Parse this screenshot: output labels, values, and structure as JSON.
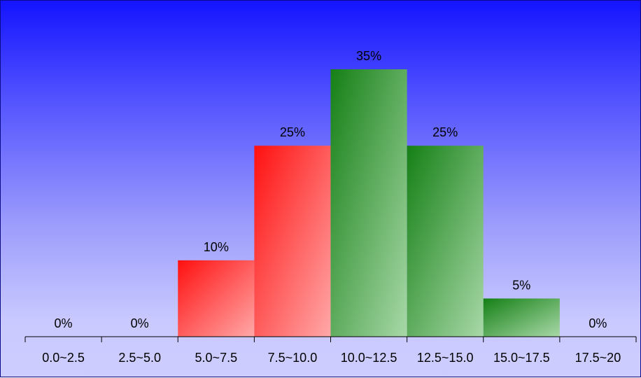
{
  "chart_data": {
    "type": "bar",
    "categories": [
      "0.0~2.5",
      "2.5~5.0",
      "5.0~7.5",
      "7.5~10.0",
      "10.0~12.5",
      "12.5~15.0",
      "15.0~17.5",
      "17.5~20"
    ],
    "values": [
      0,
      0,
      10,
      25,
      35,
      25,
      5,
      0
    ],
    "value_labels": [
      "0%",
      "0%",
      "10%",
      "25%",
      "35%",
      "25%",
      "5%",
      "0%"
    ],
    "bar_colors": [
      "#ff1a1a",
      "#ff1a1a",
      "#ff1a1a",
      "#ff1a1a",
      "#1a801a",
      "#1a801a",
      "#1a801a",
      "#1a801a"
    ],
    "ylim": [
      0,
      35
    ],
    "grid": false,
    "legend": "none"
  }
}
